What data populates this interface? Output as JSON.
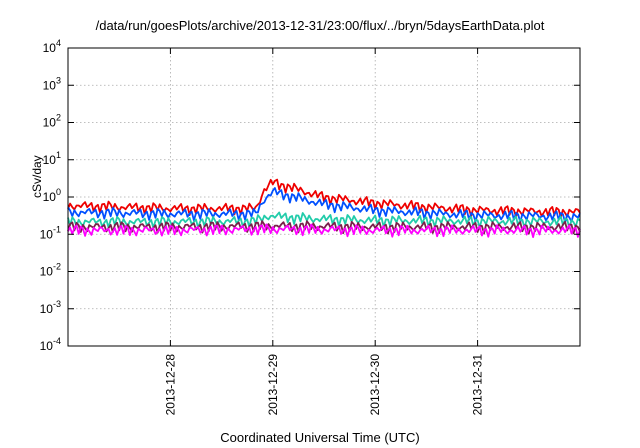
{
  "chart_data": {
    "type": "line",
    "title": "/data/run/goesPlots/archive/2013-12-31/23:00/flux/../bryn/5daysEarthData.plot",
    "xlabel": "Coordinated Universal Time (UTC)",
    "ylabel": "cSv/day",
    "yscale": "log",
    "ylim": [
      0.0001,
      10000
    ],
    "yticks": [
      {
        "value": 0.0001,
        "base": "10",
        "exp": "-4"
      },
      {
        "value": 0.001,
        "base": "10",
        "exp": "-3"
      },
      {
        "value": 0.01,
        "base": "10",
        "exp": "-2"
      },
      {
        "value": 0.1,
        "base": "10",
        "exp": "-1"
      },
      {
        "value": 1,
        "base": "10",
        "exp": "0"
      },
      {
        "value": 10,
        "base": "10",
        "exp": "1"
      },
      {
        "value": 100,
        "base": "10",
        "exp": "2"
      },
      {
        "value": 1000,
        "base": "10",
        "exp": "3"
      },
      {
        "value": 10000,
        "base": "10",
        "exp": "4"
      }
    ],
    "xlim": [
      "2013-12-27T00:00",
      "2014-01-01T00:00"
    ],
    "xticks": [
      "2013-12-28",
      "2013-12-29",
      "2013-12-30",
      "2013-12-31"
    ],
    "grid": true,
    "legend": "none",
    "series": [
      {
        "color": "#ee0000",
        "x": [
          "2013-12-27T00:00",
          "2013-12-27T12:00",
          "2013-12-28T00:00",
          "2013-12-28T12:00",
          "2013-12-28T20:00",
          "2013-12-28T22:00",
          "2013-12-29T00:00",
          "2013-12-29T06:00",
          "2013-12-29T12:00",
          "2013-12-30T00:00",
          "2013-12-30T12:00",
          "2013-12-31T00:00",
          "2013-12-31T12:00",
          "2014-01-01T00:00"
        ],
        "values": [
          0.6,
          0.55,
          0.5,
          0.5,
          0.5,
          1.6,
          2.5,
          1.6,
          1.0,
          0.7,
          0.55,
          0.45,
          0.42,
          0.4
        ]
      },
      {
        "color": "#0050ff",
        "x": [
          "2013-12-27T00:00",
          "2013-12-27T12:00",
          "2013-12-28T00:00",
          "2013-12-28T12:00",
          "2013-12-28T20:00",
          "2013-12-28T22:00",
          "2013-12-29T00:00",
          "2013-12-29T06:00",
          "2013-12-29T12:00",
          "2013-12-30T00:00",
          "2013-12-30T12:00",
          "2013-12-31T00:00",
          "2013-12-31T12:00",
          "2014-01-01T00:00"
        ],
        "values": [
          0.4,
          0.38,
          0.36,
          0.36,
          0.36,
          0.9,
          1.4,
          0.95,
          0.65,
          0.45,
          0.38,
          0.33,
          0.32,
          0.3
        ]
      },
      {
        "color": "#22ccaa",
        "x": [
          "2013-12-27T00:00",
          "2013-12-28T00:00",
          "2013-12-28T20:00",
          "2013-12-28T23:00",
          "2013-12-29T06:00",
          "2013-12-29T12:00",
          "2013-12-30T00:00",
          "2013-12-31T00:00",
          "2014-01-01T00:00"
        ],
        "values": [
          0.22,
          0.22,
          0.23,
          0.32,
          0.28,
          0.26,
          0.24,
          0.23,
          0.22
        ]
      },
      {
        "color": "#7a1f4a",
        "x": [
          "2013-12-27T00:00",
          "2013-12-28T00:00",
          "2013-12-29T00:00",
          "2013-12-30T00:00",
          "2013-12-31T00:00",
          "2014-01-01T00:00"
        ],
        "values": [
          0.16,
          0.16,
          0.17,
          0.16,
          0.16,
          0.16
        ]
      },
      {
        "color": "#ff00ff",
        "x": [
          "2013-12-27T00:00",
          "2013-12-28T00:00",
          "2013-12-29T00:00",
          "2013-12-30T00:00",
          "2013-12-31T00:00",
          "2014-01-01T00:00"
        ],
        "values": [
          0.13,
          0.13,
          0.14,
          0.13,
          0.13,
          0.13
        ]
      }
    ]
  }
}
